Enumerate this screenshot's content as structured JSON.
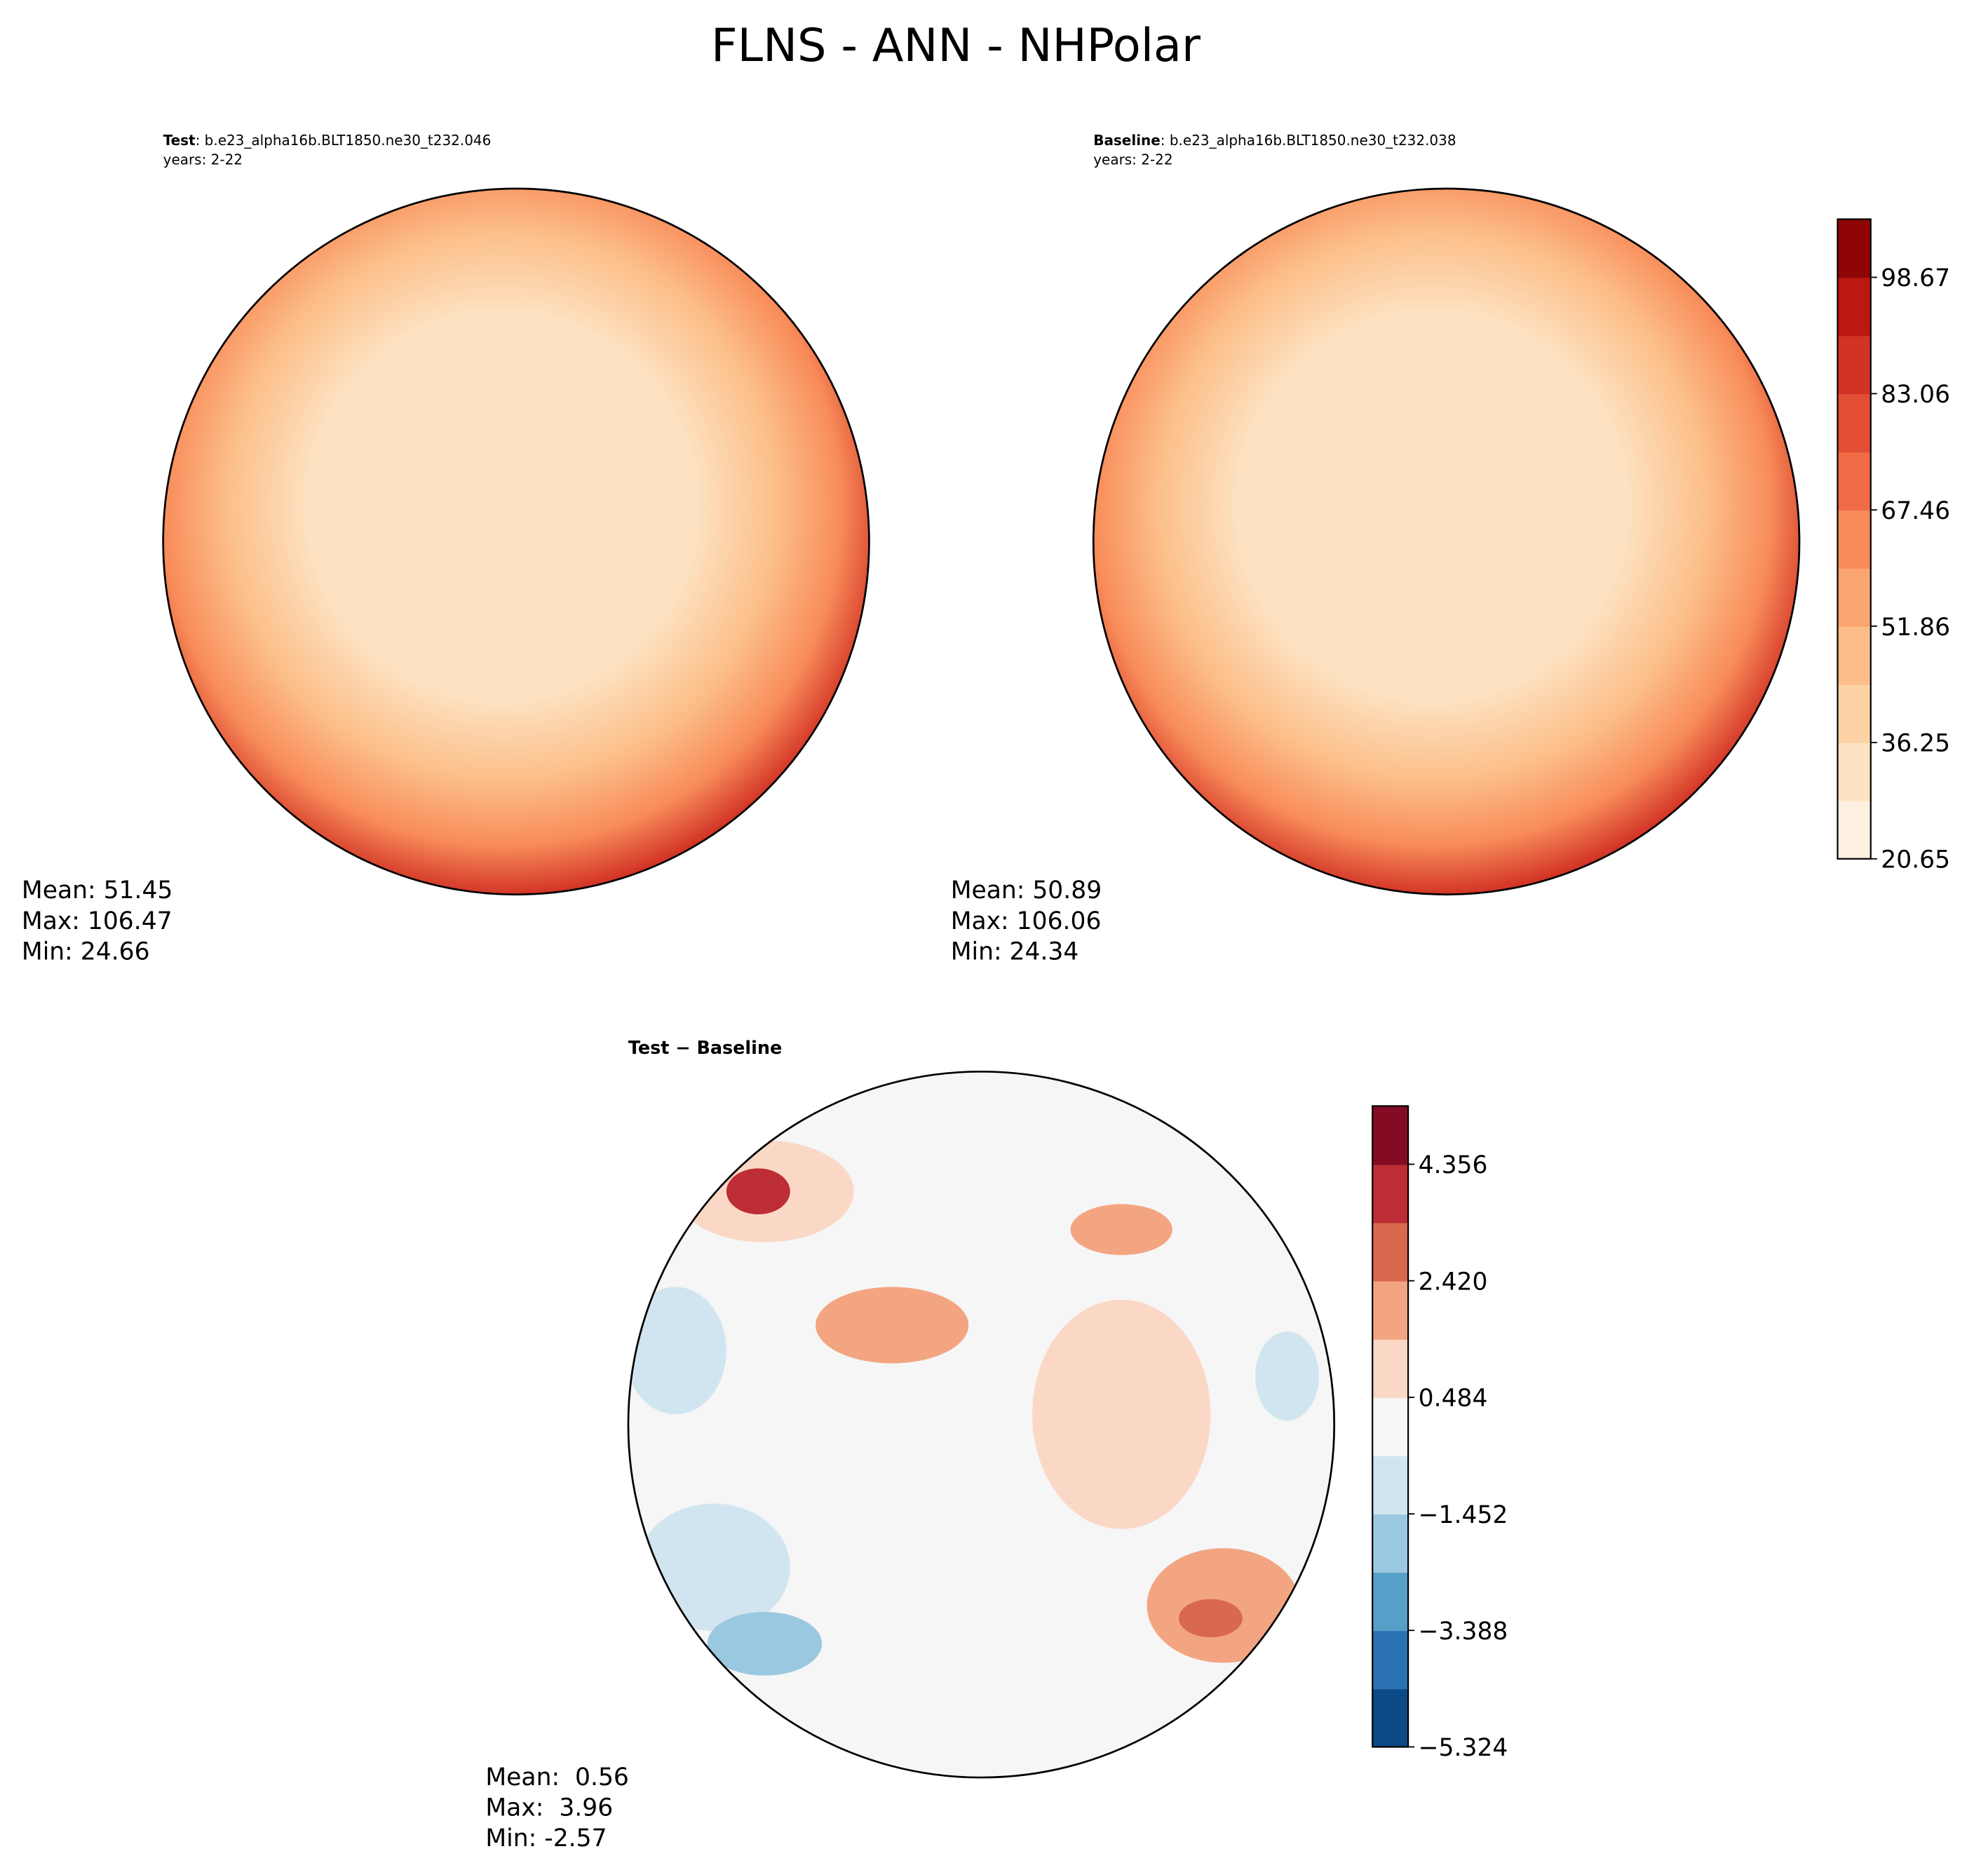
{
  "title": "FLNS - ANN - NHPolar",
  "panels": [
    {
      "label": "Test",
      "case": ": b.e23_alpha16b.BLT1850.ne30_t232.046",
      "years": "years: 2-22",
      "stats": [
        "Mean: 51.45",
        "Max: 106.47",
        "Min: 24.66"
      ]
    },
    {
      "label": "Baseline",
      "case": ": b.e23_alpha16b.BLT1850.ne30_t232.038",
      "years": "years: 2-22",
      "stats": [
        "Mean: 50.89",
        "Max: 106.06",
        "Min: 24.34"
      ]
    },
    {
      "label": "Test − Baseline",
      "stats": [
        "Mean:  0.56",
        "Max:  3.96",
        "Min: -2.57"
      ]
    }
  ],
  "colorbars": [
    {
      "lim": [
        20.65,
        106.47
      ],
      "ticks": [
        20.65,
        36.25,
        51.86,
        67.46,
        83.06,
        98.67
      ],
      "colors": [
        "#fdf0e0",
        "#fde3c3",
        "#fdd3a5",
        "#fcbe88",
        "#fba571",
        "#f88c5a",
        "#f06c47",
        "#e34f35",
        "#d23325",
        "#bb1810",
        "#8f0505"
      ]
    },
    {
      "lim": [
        -5.324,
        5.324
      ],
      "ticks": [
        {
          "value": -5.324,
          "label": "−5.324"
        },
        {
          "value": -3.388,
          "label": "−3.388"
        },
        {
          "value": -1.452,
          "label": "−1.452"
        },
        0.484,
        {
          "value": 2.42,
          "label": "2.420"
        },
        4.356
      ],
      "colors": [
        "#0c4a86",
        "#2a72b2",
        "#569fc9",
        "#9ac8e0",
        "#d1e5f0",
        "#f6f6f6",
        "#fbd8c6",
        "#f3a582",
        "#d8694f",
        "#bd2d35",
        "#830b23"
      ]
    }
  ]
}
